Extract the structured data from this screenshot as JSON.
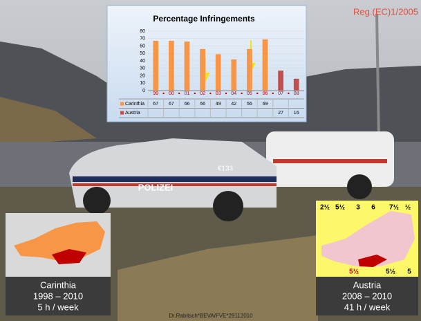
{
  "slide": {
    "reference": "Reg.(EC)1/2005",
    "footer": "Dr.Rabitsch*BEVA/FVE*29112010",
    "photo_labels": [
      "POLIZEI",
      "€133"
    ],
    "left_box": {
      "lines": [
        "Carinthia",
        "1998 – 2010",
        "5 h / week"
      ]
    },
    "right_box": {
      "lines": [
        "Austria",
        "2008 – 2010",
        "41 h / week"
      ],
      "map_labels": [
        "2½",
        "5½",
        "3",
        "6",
        "7½",
        "½",
        "5½",
        "5½",
        "5"
      ]
    }
  },
  "chart_data": {
    "type": "bar",
    "title": "Percentage Infringements",
    "categories": [
      "99",
      "00",
      "01",
      "02",
      "03",
      "04",
      "05",
      "06",
      "07",
      "08"
    ],
    "series": [
      {
        "name": "Carinthia",
        "color": "#f79646",
        "values": [
          67,
          67,
          66,
          56,
          49,
          42,
          56,
          69,
          null,
          null
        ]
      },
      {
        "name": "Austria",
        "color": "#c0504d",
        "values": [
          null,
          null,
          null,
          null,
          null,
          null,
          null,
          null,
          27,
          16
        ]
      }
    ],
    "ylim": [
      0,
      80
    ],
    "yticks": [
      0,
      10,
      20,
      30,
      40,
      50,
      60,
      70,
      80
    ],
    "grid": true
  }
}
